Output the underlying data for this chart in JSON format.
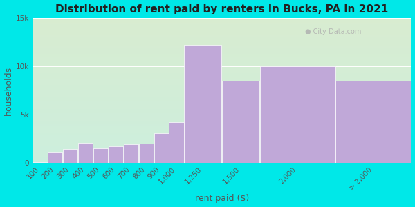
{
  "title": "Distribution of rent paid by renters in Bucks, PA in 2021",
  "xlabel": "rent paid ($)",
  "ylabel": "households",
  "background_outer": "#00e8e8",
  "bar_color": "#c0a8d8",
  "bar_edge_color": "#ffffff",
  "categories": [
    "100",
    "200",
    "300",
    "400",
    "500",
    "600",
    "700",
    "800",
    "900",
    "1,000",
    "1,250",
    "1,500",
    "2,000",
    "> 2,000"
  ],
  "values": [
    100,
    1100,
    1400,
    2100,
    1500,
    1700,
    1900,
    2000,
    3100,
    4200,
    12200,
    8500,
    10000,
    8500
  ],
  "bar_lefts": [
    0,
    100,
    200,
    300,
    400,
    500,
    600,
    700,
    800,
    900,
    1000,
    1250,
    1500,
    2000
  ],
  "bar_widths_data": [
    100,
    100,
    100,
    100,
    100,
    100,
    100,
    100,
    100,
    100,
    250,
    250,
    500,
    500
  ],
  "ylim": [
    0,
    15000
  ],
  "xlim": [
    0,
    2500
  ],
  "yticks": [
    0,
    5000,
    10000,
    15000
  ],
  "ytick_labels": [
    "0",
    "5k",
    "10k",
    "15k"
  ],
  "xtick_positions": [
    50,
    150,
    250,
    350,
    450,
    550,
    650,
    750,
    850,
    950,
    1125,
    1375,
    1750,
    2250
  ],
  "gradient_top_color": "#d8ecd0",
  "gradient_bottom_color": "#cceedd",
  "title_fontsize": 11,
  "axis_label_fontsize": 9,
  "tick_fontsize": 7.5
}
